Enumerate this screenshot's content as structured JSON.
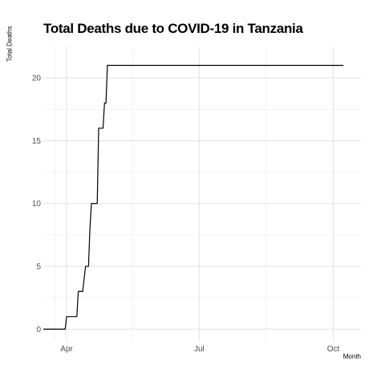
{
  "chart_data": {
    "type": "line",
    "title": "Total Deaths due to COVID-19 in Tanzania",
    "xlabel": "Month",
    "ylabel": "Total Deaths",
    "x_tick_labels": [
      {
        "date": "2020-04-01",
        "label": "Apr"
      },
      {
        "date": "2020-07-01",
        "label": "Jul"
      },
      {
        "date": "2020-10-01",
        "label": "Oct"
      }
    ],
    "y_ticks": [
      0,
      5,
      10,
      15,
      20
    ],
    "xlim": [
      "2020-03-16",
      "2020-10-20"
    ],
    "ylim": [
      -1,
      22.5
    ],
    "grid": true,
    "line_color": "#000000",
    "series": [
      {
        "name": "",
        "points": [
          {
            "x": "2020-03-16",
            "y": 0
          },
          {
            "x": "2020-03-31",
            "y": 0
          },
          {
            "x": "2020-04-01",
            "y": 1
          },
          {
            "x": "2020-04-08",
            "y": 1
          },
          {
            "x": "2020-04-09",
            "y": 3
          },
          {
            "x": "2020-04-12",
            "y": 3
          },
          {
            "x": "2020-04-13",
            "y": 4
          },
          {
            "x": "2020-04-14",
            "y": 5
          },
          {
            "x": "2020-04-16",
            "y": 5
          },
          {
            "x": "2020-04-17",
            "y": 8
          },
          {
            "x": "2020-04-18",
            "y": 10
          },
          {
            "x": "2020-04-22",
            "y": 10
          },
          {
            "x": "2020-04-23",
            "y": 16
          },
          {
            "x": "2020-04-26",
            "y": 16
          },
          {
            "x": "2020-04-27",
            "y": 18
          },
          {
            "x": "2020-04-28",
            "y": 18
          },
          {
            "x": "2020-04-29",
            "y": 21
          },
          {
            "x": "2020-10-08",
            "y": 21
          }
        ]
      }
    ]
  }
}
